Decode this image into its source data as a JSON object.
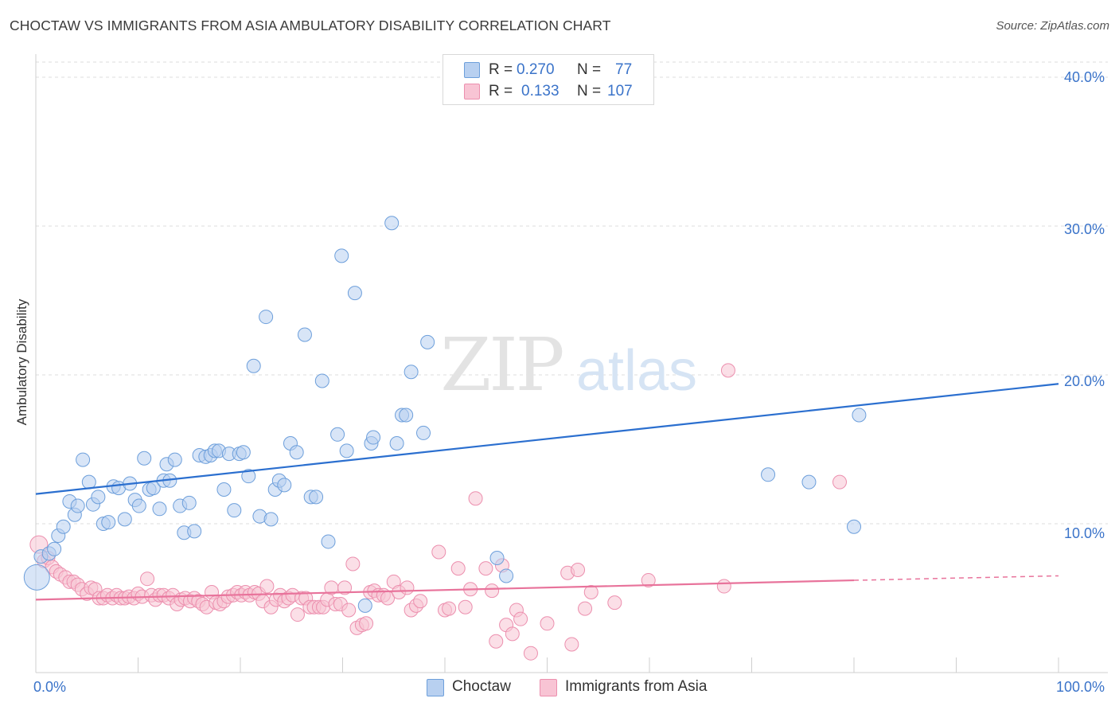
{
  "title": "CHOCTAW VS IMMIGRANTS FROM ASIA AMBULATORY DISABILITY CORRELATION CHART",
  "source": "Source: ZipAtlas.com",
  "watermark": {
    "zip": "ZIP",
    "atlas": "atlas"
  },
  "legend": {
    "r_label": "R =",
    "n_label": "N =",
    "rows": [
      {
        "r": "0.270",
        "n": "77"
      },
      {
        "r": "0.133",
        "n": "107"
      }
    ]
  },
  "colors": {
    "choctaw_fill": "#b8d0f0",
    "choctaw_stroke": "#6d9fdb",
    "choctaw_line": "#2b6fcf",
    "asia_fill": "#f8c4d4",
    "asia_stroke": "#ec8fae",
    "asia_line": "#e8739b",
    "tick_text": "#3a73c9",
    "grid": "#dddddd"
  },
  "chart_data": {
    "type": "scatter",
    "title": "CHOCTAW VS IMMIGRANTS FROM ASIA AMBULATORY DISABILITY CORRELATION CHART",
    "xlabel": "",
    "ylabel": "Ambulatory Disability",
    "xlim": [
      0,
      100
    ],
    "ylim": [
      0,
      40
    ],
    "x_tick_labels": [
      "0.0%",
      "100.0%"
    ],
    "y_ticks": [
      10,
      20,
      30,
      40
    ],
    "y_tick_labels": [
      "10.0%",
      "20.0%",
      "30.0%",
      "40.0%"
    ],
    "grid": true,
    "legend_position": "top-center",
    "series": [
      {
        "name": "Choctaw",
        "color": "#6d9fdb",
        "R": 0.27,
        "N": 77,
        "trend": {
          "x": [
            0,
            100
          ],
          "y": [
            12.0,
            19.4
          ]
        },
        "points": [
          [
            0.1,
            6.4
          ],
          [
            0.5,
            7.8
          ],
          [
            1.3,
            8.0
          ],
          [
            1.8,
            8.3
          ],
          [
            2.2,
            9.2
          ],
          [
            2.7,
            9.8
          ],
          [
            3.3,
            11.5
          ],
          [
            3.8,
            10.6
          ],
          [
            4.1,
            11.2
          ],
          [
            4.6,
            14.3
          ],
          [
            5.2,
            12.8
          ],
          [
            5.6,
            11.3
          ],
          [
            6.1,
            11.8
          ],
          [
            6.6,
            10.0
          ],
          [
            7.1,
            10.1
          ],
          [
            7.6,
            12.5
          ],
          [
            8.1,
            12.4
          ],
          [
            8.7,
            10.3
          ],
          [
            9.2,
            12.7
          ],
          [
            9.7,
            11.6
          ],
          [
            10.1,
            11.2
          ],
          [
            10.6,
            14.4
          ],
          [
            11.1,
            12.3
          ],
          [
            11.5,
            12.4
          ],
          [
            12.1,
            11.0
          ],
          [
            12.5,
            12.9
          ],
          [
            12.8,
            14.0
          ],
          [
            13.1,
            12.9
          ],
          [
            13.6,
            14.3
          ],
          [
            14.1,
            11.2
          ],
          [
            14.5,
            9.4
          ],
          [
            15.0,
            11.4
          ],
          [
            15.5,
            9.5
          ],
          [
            16.0,
            14.6
          ],
          [
            16.6,
            14.5
          ],
          [
            17.1,
            14.6
          ],
          [
            17.5,
            14.9
          ],
          [
            17.9,
            14.9
          ],
          [
            18.4,
            12.3
          ],
          [
            18.9,
            14.7
          ],
          [
            19.4,
            10.9
          ],
          [
            19.9,
            14.7
          ],
          [
            20.3,
            14.8
          ],
          [
            20.8,
            13.2
          ],
          [
            21.3,
            20.6
          ],
          [
            21.9,
            10.5
          ],
          [
            22.5,
            23.9
          ],
          [
            23.0,
            10.3
          ],
          [
            23.4,
            12.3
          ],
          [
            23.8,
            12.9
          ],
          [
            24.3,
            12.6
          ],
          [
            24.9,
            15.4
          ],
          [
            25.5,
            14.8
          ],
          [
            26.3,
            22.7
          ],
          [
            26.9,
            11.8
          ],
          [
            27.4,
            11.8
          ],
          [
            28.0,
            19.6
          ],
          [
            28.6,
            8.8
          ],
          [
            29.5,
            16.0
          ],
          [
            29.9,
            28.0
          ],
          [
            30.4,
            14.9
          ],
          [
            31.2,
            25.5
          ],
          [
            32.2,
            4.5
          ],
          [
            32.8,
            15.4
          ],
          [
            33.0,
            15.8
          ],
          [
            34.8,
            30.2
          ],
          [
            35.3,
            15.4
          ],
          [
            35.8,
            17.3
          ],
          [
            36.2,
            17.3
          ],
          [
            36.7,
            20.2
          ],
          [
            37.9,
            16.1
          ],
          [
            38.3,
            22.2
          ],
          [
            45.1,
            7.7
          ],
          [
            46.0,
            6.5
          ],
          [
            71.6,
            13.3
          ],
          [
            75.6,
            12.8
          ],
          [
            80.0,
            9.8
          ],
          [
            80.5,
            17.3
          ]
        ]
      },
      {
        "name": "Immigrants from Asia",
        "color": "#ec8fae",
        "R": 0.133,
        "N": 107,
        "trend": {
          "x": [
            0,
            80
          ],
          "y": [
            4.9,
            6.2
          ]
        },
        "trend_dashed": {
          "x": [
            80,
            100
          ],
          "y": [
            6.2,
            6.5
          ]
        },
        "points": [
          [
            0.3,
            8.6
          ],
          [
            0.8,
            7.5
          ],
          [
            1.2,
            7.7
          ],
          [
            1.6,
            7.1
          ],
          [
            2.0,
            6.8
          ],
          [
            2.4,
            6.6
          ],
          [
            2.9,
            6.4
          ],
          [
            3.3,
            6.1
          ],
          [
            3.7,
            6.1
          ],
          [
            4.1,
            5.9
          ],
          [
            4.5,
            5.6
          ],
          [
            5.0,
            5.3
          ],
          [
            5.4,
            5.7
          ],
          [
            5.8,
            5.6
          ],
          [
            6.2,
            5.0
          ],
          [
            6.6,
            5.0
          ],
          [
            7.0,
            5.2
          ],
          [
            7.5,
            5.0
          ],
          [
            7.9,
            5.2
          ],
          [
            8.3,
            5.0
          ],
          [
            8.7,
            5.0
          ],
          [
            9.1,
            5.1
          ],
          [
            9.6,
            5.0
          ],
          [
            10.0,
            5.3
          ],
          [
            10.4,
            5.1
          ],
          [
            10.9,
            6.3
          ],
          [
            11.3,
            5.2
          ],
          [
            11.7,
            4.9
          ],
          [
            12.1,
            5.2
          ],
          [
            12.5,
            5.2
          ],
          [
            13.0,
            5.0
          ],
          [
            13.4,
            5.2
          ],
          [
            13.8,
            4.6
          ],
          [
            14.2,
            4.9
          ],
          [
            14.6,
            5.0
          ],
          [
            15.1,
            4.8
          ],
          [
            15.5,
            5.0
          ],
          [
            15.9,
            4.8
          ],
          [
            16.3,
            4.6
          ],
          [
            16.7,
            4.4
          ],
          [
            17.2,
            5.4
          ],
          [
            17.6,
            4.7
          ],
          [
            18.0,
            4.6
          ],
          [
            18.4,
            4.8
          ],
          [
            18.8,
            5.1
          ],
          [
            19.3,
            5.2
          ],
          [
            19.7,
            5.4
          ],
          [
            20.1,
            5.2
          ],
          [
            20.5,
            5.4
          ],
          [
            20.9,
            5.2
          ],
          [
            21.4,
            5.4
          ],
          [
            21.8,
            5.3
          ],
          [
            22.2,
            4.8
          ],
          [
            22.6,
            5.8
          ],
          [
            23.0,
            4.4
          ],
          [
            23.5,
            4.9
          ],
          [
            23.9,
            5.2
          ],
          [
            24.3,
            4.8
          ],
          [
            24.7,
            5.0
          ],
          [
            25.1,
            5.2
          ],
          [
            25.6,
            3.9
          ],
          [
            26.0,
            5.0
          ],
          [
            26.4,
            5.0
          ],
          [
            26.8,
            4.4
          ],
          [
            27.2,
            4.4
          ],
          [
            27.7,
            4.4
          ],
          [
            28.1,
            4.4
          ],
          [
            28.5,
            4.9
          ],
          [
            28.9,
            5.7
          ],
          [
            29.3,
            4.6
          ],
          [
            29.8,
            4.6
          ],
          [
            30.2,
            5.7
          ],
          [
            30.6,
            4.2
          ],
          [
            31.0,
            7.3
          ],
          [
            31.4,
            3.0
          ],
          [
            31.9,
            3.2
          ],
          [
            32.3,
            3.3
          ],
          [
            32.7,
            5.4
          ],
          [
            33.1,
            5.5
          ],
          [
            33.5,
            5.2
          ],
          [
            34.0,
            5.2
          ],
          [
            34.4,
            5.0
          ],
          [
            35.0,
            6.1
          ],
          [
            35.5,
            5.4
          ],
          [
            36.3,
            5.7
          ],
          [
            36.7,
            4.2
          ],
          [
            37.2,
            4.5
          ],
          [
            37.6,
            4.8
          ],
          [
            39.4,
            8.1
          ],
          [
            40.0,
            4.2
          ],
          [
            40.4,
            4.3
          ],
          [
            41.3,
            7.0
          ],
          [
            42.0,
            4.4
          ],
          [
            42.5,
            5.6
          ],
          [
            43.0,
            11.7
          ],
          [
            44.0,
            7.0
          ],
          [
            44.6,
            5.5
          ],
          [
            45.0,
            2.1
          ],
          [
            45.6,
            7.2
          ],
          [
            46.0,
            3.2
          ],
          [
            46.6,
            2.6
          ],
          [
            47.0,
            4.2
          ],
          [
            47.4,
            3.6
          ],
          [
            48.4,
            1.3
          ],
          [
            50.0,
            3.3
          ],
          [
            52.0,
            6.7
          ],
          [
            52.4,
            1.9
          ],
          [
            53.0,
            6.9
          ],
          [
            53.7,
            4.3
          ],
          [
            54.3,
            5.4
          ],
          [
            56.6,
            4.7
          ],
          [
            59.9,
            6.2
          ],
          [
            67.3,
            5.8
          ],
          [
            67.7,
            20.3
          ],
          [
            78.6,
            12.8
          ]
        ]
      }
    ]
  },
  "bottom_legend": [
    "Choctaw",
    "Immigrants from Asia"
  ]
}
